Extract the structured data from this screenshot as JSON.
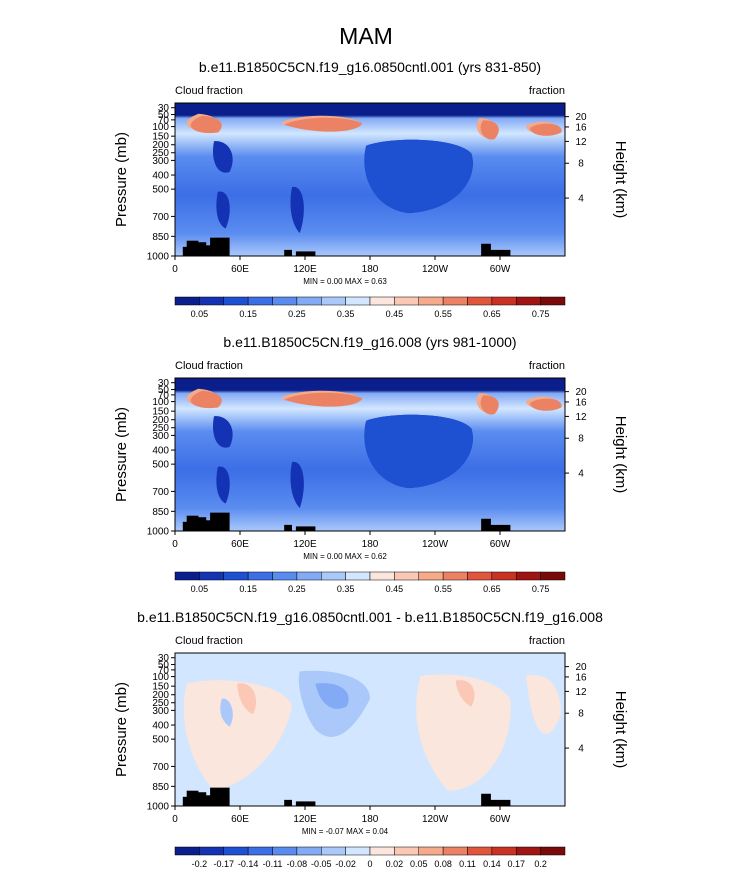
{
  "figure": {
    "title": "MAM"
  },
  "chart_data": [
    {
      "type": "heatmap",
      "title": "b.e11.B1850C5CN.f19_g16.0850cntl.001 (yrs 831-850)",
      "left_label": "Cloud fraction",
      "right_label": "fraction",
      "ylabel": "Pressure (mb)",
      "ylabel_right": "Height (km)",
      "x_ticks": [
        "0",
        "60E",
        "120E",
        "180",
        "120W",
        "60W"
      ],
      "y_ticks": [
        "1000",
        "850",
        "700",
        "500",
        "400",
        "300",
        "250",
        "200",
        "150",
        "100",
        "70",
        "50",
        "30"
      ],
      "y_ticks_right": [
        "4",
        "8",
        "12",
        "16",
        "20"
      ],
      "stats": "MIN =   0.00  MAX =   0.63",
      "min": 0.0,
      "max": 0.63,
      "colorbar": {
        "labels": [
          "0.05",
          "0.15",
          "0.25",
          "0.35",
          "0.45",
          "0.55",
          "0.65",
          "0.75"
        ],
        "colors": [
          "#0a1e8c",
          "#1432b4",
          "#1e50d2",
          "#3c6ee6",
          "#5a8cf0",
          "#82aaf5",
          "#aac8fa",
          "#d2e6ff",
          "#fae6dc",
          "#fac8b4",
          "#f5aa8c",
          "#eb8264",
          "#e1553c",
          "#c83223",
          "#a01414",
          "#780a0a"
        ]
      }
    },
    {
      "type": "heatmap",
      "title": "b.e11.B1850C5CN.f19_g16.008 (yrs 981-1000)",
      "left_label": "Cloud fraction",
      "right_label": "fraction",
      "ylabel": "Pressure (mb)",
      "ylabel_right": "Height (km)",
      "x_ticks": [
        "0",
        "60E",
        "120E",
        "180",
        "120W",
        "60W"
      ],
      "y_ticks": [
        "1000",
        "850",
        "700",
        "500",
        "400",
        "300",
        "250",
        "200",
        "150",
        "100",
        "70",
        "50",
        "30"
      ],
      "y_ticks_right": [
        "4",
        "8",
        "12",
        "16",
        "20"
      ],
      "stats": "MIN =   0.00  MAX =   0.62",
      "min": 0.0,
      "max": 0.62,
      "colorbar": {
        "labels": [
          "0.05",
          "0.15",
          "0.25",
          "0.35",
          "0.45",
          "0.55",
          "0.65",
          "0.75"
        ],
        "colors": [
          "#0a1e8c",
          "#1432b4",
          "#1e50d2",
          "#3c6ee6",
          "#5a8cf0",
          "#82aaf5",
          "#aac8fa",
          "#d2e6ff",
          "#fae6dc",
          "#fac8b4",
          "#f5aa8c",
          "#eb8264",
          "#e1553c",
          "#c83223",
          "#a01414",
          "#780a0a"
        ]
      }
    },
    {
      "type": "heatmap",
      "title": "b.e11.B1850C5CN.f19_g16.0850cntl.001 - b.e11.B1850C5CN.f19_g16.008",
      "left_label": "Cloud fraction",
      "right_label": "fraction",
      "ylabel": "Pressure (mb)",
      "ylabel_right": "Height (km)",
      "x_ticks": [
        "0",
        "60E",
        "120E",
        "180",
        "120W",
        "60W"
      ],
      "y_ticks": [
        "1000",
        "850",
        "700",
        "500",
        "400",
        "300",
        "250",
        "200",
        "150",
        "100",
        "70",
        "50",
        "30"
      ],
      "y_ticks_right": [
        "4",
        "8",
        "12",
        "16",
        "20"
      ],
      "stats": "MIN =  -0.07  MAX =   0.04",
      "min": -0.07,
      "max": 0.04,
      "colorbar": {
        "labels": [
          "-0.2",
          "-0.17",
          "-0.14",
          "-0.11",
          "-0.08",
          "-0.05",
          "-0.02",
          "0",
          "0.02",
          "0.05",
          "0.08",
          "0.11",
          "0.14",
          "0.17",
          "0.2"
        ],
        "colors": [
          "#0a1e8c",
          "#1432b4",
          "#1e50d2",
          "#3c6ee6",
          "#5a8cf0",
          "#82aaf5",
          "#aac8fa",
          "#d2e6ff",
          "#fae6dc",
          "#fac8b4",
          "#f5aa8c",
          "#eb8264",
          "#e1553c",
          "#c83223",
          "#a01414",
          "#780a0a"
        ]
      }
    }
  ]
}
